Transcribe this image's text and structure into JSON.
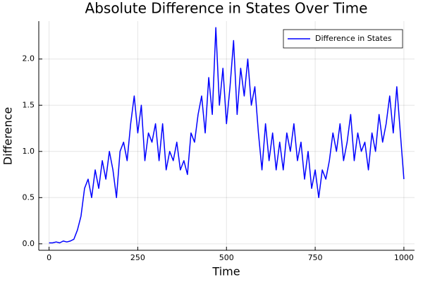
{
  "chart_data": {
    "type": "line",
    "title": "Absolute Difference in States Over Time",
    "xlabel": "Time",
    "ylabel": "Difference",
    "x": [
      0,
      10,
      20,
      30,
      40,
      50,
      60,
      70,
      80,
      90,
      100,
      110,
      120,
      130,
      140,
      150,
      160,
      170,
      180,
      190,
      200,
      210,
      220,
      230,
      240,
      250,
      260,
      270,
      280,
      290,
      300,
      310,
      320,
      330,
      340,
      350,
      360,
      370,
      380,
      390,
      400,
      410,
      420,
      430,
      440,
      450,
      460,
      470,
      480,
      490,
      500,
      510,
      520,
      530,
      540,
      550,
      560,
      570,
      580,
      590,
      600,
      610,
      620,
      630,
      640,
      650,
      660,
      670,
      680,
      690,
      700,
      710,
      720,
      730,
      740,
      750,
      760,
      770,
      780,
      790,
      800,
      810,
      820,
      830,
      840,
      850,
      860,
      870,
      880,
      890,
      900,
      910,
      920,
      930,
      940,
      950,
      960,
      970,
      980,
      990,
      1000
    ],
    "series": [
      {
        "name": "Difference in States",
        "color": "#0000ff",
        "values": [
          0.01,
          0.01,
          0.02,
          0.01,
          0.03,
          0.02,
          0.03,
          0.05,
          0.15,
          0.3,
          0.6,
          0.7,
          0.5,
          0.8,
          0.6,
          0.9,
          0.7,
          1.0,
          0.8,
          0.5,
          1.0,
          1.1,
          0.9,
          1.3,
          1.6,
          1.2,
          1.5,
          0.9,
          1.2,
          1.1,
          1.3,
          0.9,
          1.3,
          0.8,
          1.0,
          0.9,
          1.1,
          0.8,
          0.9,
          0.75,
          1.2,
          1.1,
          1.4,
          1.6,
          1.2,
          1.8,
          1.4,
          2.34,
          1.5,
          1.9,
          1.3,
          1.7,
          2.2,
          1.4,
          1.9,
          1.6,
          2.0,
          1.5,
          1.7,
          1.2,
          0.8,
          1.3,
          0.9,
          1.2,
          0.8,
          1.1,
          0.8,
          1.2,
          1.0,
          1.3,
          0.9,
          1.1,
          0.7,
          1.0,
          0.6,
          0.8,
          0.5,
          0.8,
          0.7,
          0.9,
          1.2,
          1.0,
          1.3,
          0.9,
          1.1,
          1.4,
          0.9,
          1.2,
          1.0,
          1.1,
          0.8,
          1.2,
          1.0,
          1.4,
          1.1,
          1.3,
          1.6,
          1.2,
          1.7,
          1.2,
          0.7
        ]
      }
    ],
    "xlim": [
      -29,
      1030
    ],
    "xticks": [
      0,
      250,
      500,
      750,
      1000
    ],
    "ylim": [
      -0.07,
      2.41
    ],
    "yticks": [
      {
        "value": 0,
        "label": "0.0"
      },
      0.5,
      {
        "value": 1,
        "label": "1.0"
      },
      1.5,
      {
        "value": 2,
        "label": "2.0"
      }
    ],
    "grid": true,
    "legend": "top-right"
  }
}
